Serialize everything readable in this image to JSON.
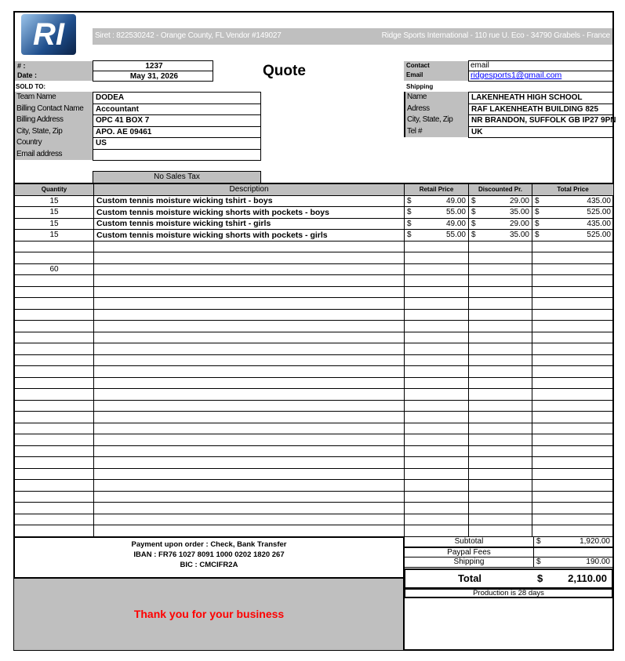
{
  "header": {
    "logo_text": "RI",
    "siret": "Siret : 822530242 - Orange County, FL Vendor #149027",
    "company": "Ridge Sports International - 110 rue U. Eco - 34790 Grabels - France",
    "title": "Quote"
  },
  "quote": {
    "number_label": "# :",
    "number": "1237",
    "date_label": "Date :",
    "date": "May 31, 2026"
  },
  "contact": {
    "contact_label": "Contact",
    "contact": "email",
    "email_label": "Email",
    "email": "ridgesports1@gmail.com",
    "color_link": "#0000ff"
  },
  "sold_to": {
    "label": "SOLD TO:",
    "fields": [
      {
        "label": "Team Name",
        "value": "DODEA"
      },
      {
        "label": "Billing Contact Name",
        "value": "Accountant"
      },
      {
        "label": "Billing Address",
        "value": "OPC 41 BOX 7"
      },
      {
        "label": "City, State, Zip",
        "value": "APO. AE 09461"
      },
      {
        "label": "Country",
        "value": "US"
      },
      {
        "label": "Email address",
        "value": ""
      }
    ]
  },
  "shipping": {
    "label": "Shipping",
    "fields": [
      {
        "label": "Name",
        "value": "LAKENHEATH HIGH SCHOOL"
      },
      {
        "label": "Adress",
        "value": "RAF LAKENHEATH BUILDING 825"
      },
      {
        "label": "City, State, Zip",
        "value": "NR BRANDON, SUFFOLK GB IP27 9PN"
      },
      {
        "label": "Tel #",
        "value": "UK"
      }
    ]
  },
  "tax_note": "No Sales Tax",
  "table": {
    "headers": [
      "Quantity",
      "Description",
      "Retail Price",
      "Discounted Pr.",
      "Total Price"
    ],
    "rows": [
      {
        "qty": "15",
        "desc": "Custom tennis moisture wicking tshirt - boys",
        "retail": "49.00",
        "disc": "29.00",
        "total": "435.00"
      },
      {
        "qty": "15",
        "desc": "Custom tennis moisture wicking shorts with pockets - boys",
        "retail": "55.00",
        "disc": "35.00",
        "total": "525.00"
      },
      {
        "qty": "15",
        "desc": "Custom tennis moisture wicking tshirt - girls",
        "retail": "49.00",
        "disc": "29.00",
        "total": "435.00"
      },
      {
        "qty": "15",
        "desc": "Custom tennis moisture wicking shorts with pockets - girls",
        "retail": "55.00",
        "disc": "35.00",
        "total": "525.00"
      },
      {},
      {},
      {
        "qty": "60"
      }
    ],
    "currency": "$"
  },
  "payment": {
    "line1": "Payment upon order : Check, Bank Transfer",
    "line2": "IBAN : FR76 1027 8091 1000 0202 1820 267",
    "line3": "BIC : CMCIFR2A"
  },
  "thanks": "Thank you for your business",
  "totals": {
    "subtotal_label": "Subtotal",
    "subtotal": "1,920.00",
    "paypal_label": "Paypal Fees",
    "paypal": "",
    "shipping_label": "Shipping",
    "shipping": "190.00",
    "total_label": "Total",
    "total": "2,110.00",
    "currency": "$",
    "production": "Production is 28 days"
  },
  "colors": {
    "gray": "#bfbfbf",
    "thanks": "#ff0000"
  }
}
